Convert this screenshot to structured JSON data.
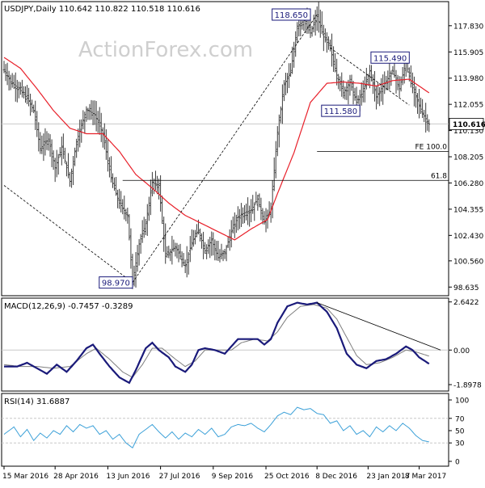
{
  "watermark": "ActionForex.com",
  "colors": {
    "price_bar": "#3b3b3b",
    "ma": "#e8202a",
    "macd": "#1a1a7a",
    "signal": "#7f7f7f",
    "rsi": "#3ba0d8",
    "level_line": "#000000",
    "ref_line": "#c8c8c8",
    "watermark": "#cfcfcf"
  },
  "chart_data": [
    {
      "type": "bar",
      "title": "USDJPY,Daily  110.642 110.822 110.518 110.616",
      "ylim": [
        98.0,
        119.6
      ],
      "y_ticks": [
        "117.830",
        "115.905",
        "113.980",
        "112.055",
        "110.130",
        "108.205",
        "106.280",
        "104.355",
        "102.430",
        "100.560",
        "98.635"
      ],
      "y_tick_values": [
        117.83,
        115.905,
        113.98,
        112.055,
        110.13,
        108.205,
        106.28,
        104.355,
        102.43,
        100.56,
        98.635
      ],
      "current_price": "110.616",
      "current_price_value": 110.616,
      "x_labels": [
        "15 Mar 2016",
        "28 Apr 2016",
        "13 Jun 2016",
        "27 Jul 2016",
        "9 Sep 2016",
        "25 Oct 2016",
        "8 Dec 2016",
        "23 Jan 2017",
        "8 Mar 2017"
      ],
      "bars": 265,
      "ohlc_anchors": [
        [
          0,
          114.6
        ],
        [
          4,
          113.7
        ],
        [
          9,
          113.2
        ],
        [
          14,
          112.5
        ],
        [
          18,
          111.6
        ],
        [
          22,
          108.8
        ],
        [
          27,
          109.5
        ],
        [
          31,
          107.4
        ],
        [
          35,
          108.9
        ],
        [
          40,
          106.4
        ],
        [
          44,
          109.3
        ],
        [
          50,
          111.7
        ],
        [
          55,
          111.3
        ],
        [
          60,
          109.9
        ],
        [
          65,
          106.6
        ],
        [
          70,
          104.8
        ],
        [
          75,
          103.9
        ],
        [
          78,
          99.0
        ],
        [
          82,
          101.8
        ],
        [
          86,
          103.3
        ],
        [
          90,
          106.3
        ],
        [
          94,
          106.1
        ],
        [
          98,
          100.9
        ],
        [
          104,
          101.6
        ],
        [
          110,
          100.2
        ],
        [
          114,
          101.9
        ],
        [
          118,
          102.8
        ],
        [
          122,
          101.3
        ],
        [
          126,
          102.1
        ],
        [
          130,
          100.8
        ],
        [
          134,
          101.2
        ],
        [
          138,
          102.7
        ],
        [
          142,
          103.8
        ],
        [
          146,
          104.1
        ],
        [
          150,
          104.3
        ],
        [
          154,
          105.1
        ],
        [
          158,
          103.4
        ],
        [
          162,
          104.4
        ],
        [
          166,
          110.0
        ],
        [
          170,
          113.5
        ],
        [
          174,
          114.4
        ],
        [
          178,
          117.8
        ],
        [
          182,
          118.2
        ],
        [
          186,
          117.3
        ],
        [
          190,
          118.5
        ],
        [
          194,
          117.0
        ],
        [
          198,
          116.2
        ],
        [
          202,
          114.2
        ],
        [
          206,
          112.9
        ],
        [
          210,
          113.7
        ],
        [
          214,
          112.2
        ],
        [
          218,
          113.0
        ],
        [
          222,
          114.5
        ],
        [
          226,
          112.6
        ],
        [
          230,
          113.4
        ],
        [
          236,
          114.5
        ],
        [
          240,
          113.2
        ],
        [
          244,
          115.2
        ],
        [
          247,
          113.6
        ],
        [
          250,
          112.6
        ],
        [
          254,
          111.4
        ],
        [
          258,
          110.6
        ]
      ],
      "sma_anchors": [
        [
          0,
          115.5
        ],
        [
          10,
          114.7
        ],
        [
          20,
          113.2
        ],
        [
          30,
          111.6
        ],
        [
          40,
          110.3
        ],
        [
          50,
          109.9
        ],
        [
          60,
          109.9
        ],
        [
          70,
          108.6
        ],
        [
          80,
          106.9
        ],
        [
          90,
          105.9
        ],
        [
          100,
          104.8
        ],
        [
          110,
          103.9
        ],
        [
          120,
          103.3
        ],
        [
          130,
          102.7
        ],
        [
          140,
          102.1
        ],
        [
          150,
          102.9
        ],
        [
          160,
          103.6
        ],
        [
          166,
          105.5
        ],
        [
          176,
          108.5
        ],
        [
          186,
          112.2
        ],
        [
          196,
          113.6
        ],
        [
          206,
          113.7
        ],
        [
          216,
          113.6
        ],
        [
          226,
          113.4
        ],
        [
          236,
          113.8
        ],
        [
          246,
          113.9
        ],
        [
          252,
          113.4
        ],
        [
          258,
          112.9
        ]
      ],
      "annotations": [
        {
          "label": "118.650",
          "bar": 186,
          "value": 118.65
        },
        {
          "label": "115.490",
          "bar": 246,
          "value": 115.49
        },
        {
          "label": "111.580",
          "bar": 216,
          "value": 111.58
        },
        {
          "label": "98.970",
          "bar": 78,
          "value": 98.97
        }
      ],
      "levels": [
        {
          "label": "FE 100.0",
          "value": 108.6,
          "from_bar": 190
        },
        {
          "label": "61.8",
          "value": 106.47,
          "from_bar": 72
        }
      ],
      "trendlines": [
        {
          "from": [
            0,
            106.1
          ],
          "to": [
            78,
            98.97
          ]
        },
        {
          "from": [
            78,
            98.97
          ],
          "to": [
            190,
            118.65
          ]
        },
        {
          "from": [
            198,
            116.2
          ],
          "to": [
            246,
            112.0
          ]
        }
      ]
    },
    {
      "type": "line",
      "title": "MACD(12,26,9) -0.7457 -0.3289",
      "ylim": [
        -2.25,
        2.85
      ],
      "y_ticks": [
        "2.6422",
        "0.00",
        "-1.8978"
      ],
      "y_tick_values": [
        2.6422,
        0.0,
        -1.8978
      ],
      "zero_line": 0.0,
      "macd_anchors": [
        [
          0,
          -0.9
        ],
        [
          8,
          -0.9
        ],
        [
          14,
          -0.7
        ],
        [
          20,
          -1.0
        ],
        [
          26,
          -1.3
        ],
        [
          32,
          -0.8
        ],
        [
          38,
          -1.2
        ],
        [
          44,
          -0.6
        ],
        [
          50,
          0.1
        ],
        [
          54,
          0.3
        ],
        [
          58,
          -0.2
        ],
        [
          64,
          -0.9
        ],
        [
          70,
          -1.5
        ],
        [
          76,
          -1.8
        ],
        [
          80,
          -1.1
        ],
        [
          86,
          0.1
        ],
        [
          90,
          0.4
        ],
        [
          94,
          0.0
        ],
        [
          100,
          -0.4
        ],
        [
          104,
          -0.9
        ],
        [
          110,
          -1.2
        ],
        [
          114,
          -0.8
        ],
        [
          118,
          0.0
        ],
        [
          122,
          0.1
        ],
        [
          128,
          0.0
        ],
        [
          134,
          -0.2
        ],
        [
          138,
          0.2
        ],
        [
          142,
          0.6
        ],
        [
          148,
          0.6
        ],
        [
          154,
          0.6
        ],
        [
          158,
          0.3
        ],
        [
          162,
          0.6
        ],
        [
          166,
          1.5
        ],
        [
          172,
          2.4
        ],
        [
          178,
          2.6
        ],
        [
          184,
          2.5
        ],
        [
          190,
          2.6
        ],
        [
          196,
          2.1
        ],
        [
          202,
          1.2
        ],
        [
          208,
          -0.2
        ],
        [
          214,
          -0.8
        ],
        [
          220,
          -1.0
        ],
        [
          226,
          -0.6
        ],
        [
          232,
          -0.5
        ],
        [
          238,
          -0.2
        ],
        [
          244,
          0.2
        ],
        [
          248,
          0.0
        ],
        [
          252,
          -0.4
        ],
        [
          258,
          -0.75
        ]
      ],
      "signal_anchors": [
        [
          0,
          -0.8
        ],
        [
          10,
          -0.9
        ],
        [
          20,
          -0.9
        ],
        [
          30,
          -1.0
        ],
        [
          40,
          -0.9
        ],
        [
          50,
          -0.2
        ],
        [
          56,
          0.1
        ],
        [
          64,
          -0.5
        ],
        [
          72,
          -1.2
        ],
        [
          78,
          -1.5
        ],
        [
          84,
          -0.8
        ],
        [
          90,
          0.1
        ],
        [
          96,
          0.1
        ],
        [
          104,
          -0.5
        ],
        [
          110,
          -0.9
        ],
        [
          116,
          -0.6
        ],
        [
          122,
          0.0
        ],
        [
          130,
          0.0
        ],
        [
          138,
          0.0
        ],
        [
          144,
          0.4
        ],
        [
          152,
          0.6
        ],
        [
          160,
          0.5
        ],
        [
          166,
          1.0
        ],
        [
          172,
          1.8
        ],
        [
          180,
          2.4
        ],
        [
          188,
          2.5
        ],
        [
          196,
          2.3
        ],
        [
          202,
          1.7
        ],
        [
          208,
          0.7
        ],
        [
          214,
          -0.3
        ],
        [
          220,
          -0.8
        ],
        [
          228,
          -0.7
        ],
        [
          236,
          -0.4
        ],
        [
          244,
          0.0
        ],
        [
          250,
          -0.1
        ],
        [
          258,
          -0.33
        ]
      ],
      "trendline": {
        "from": [
          190,
          2.6
        ],
        "to": [
          265,
          0.0
        ]
      }
    },
    {
      "type": "line",
      "title": "RSI(14) 31.6887",
      "ylim": [
        0,
        100
      ],
      "y_ticks": [
        "100",
        "70",
        "50",
        "30",
        "0"
      ],
      "y_tick_values": [
        100,
        70,
        50,
        30,
        0
      ],
      "ref_levels": [
        70,
        30
      ],
      "rsi_anchors": [
        [
          0,
          44
        ],
        [
          6,
          56
        ],
        [
          10,
          40
        ],
        [
          14,
          52
        ],
        [
          18,
          34
        ],
        [
          22,
          46
        ],
        [
          26,
          38
        ],
        [
          30,
          50
        ],
        [
          34,
          44
        ],
        [
          38,
          58
        ],
        [
          42,
          48
        ],
        [
          46,
          60
        ],
        [
          50,
          54
        ],
        [
          54,
          58
        ],
        [
          58,
          44
        ],
        [
          62,
          50
        ],
        [
          66,
          36
        ],
        [
          70,
          44
        ],
        [
          74,
          30
        ],
        [
          78,
          22
        ],
        [
          82,
          44
        ],
        [
          86,
          52
        ],
        [
          90,
          60
        ],
        [
          94,
          48
        ],
        [
          98,
          38
        ],
        [
          102,
          48
        ],
        [
          106,
          36
        ],
        [
          110,
          46
        ],
        [
          114,
          40
        ],
        [
          118,
          52
        ],
        [
          122,
          44
        ],
        [
          126,
          54
        ],
        [
          130,
          40
        ],
        [
          134,
          44
        ],
        [
          138,
          56
        ],
        [
          142,
          60
        ],
        [
          146,
          58
        ],
        [
          150,
          62
        ],
        [
          154,
          54
        ],
        [
          158,
          48
        ],
        [
          162,
          60
        ],
        [
          166,
          74
        ],
        [
          170,
          80
        ],
        [
          174,
          76
        ],
        [
          178,
          88
        ],
        [
          182,
          84
        ],
        [
          186,
          86
        ],
        [
          190,
          78
        ],
        [
          194,
          76
        ],
        [
          198,
          62
        ],
        [
          202,
          66
        ],
        [
          206,
          50
        ],
        [
          210,
          58
        ],
        [
          214,
          44
        ],
        [
          218,
          50
        ],
        [
          222,
          40
        ],
        [
          226,
          56
        ],
        [
          230,
          48
        ],
        [
          234,
          58
        ],
        [
          238,
          50
        ],
        [
          242,
          62
        ],
        [
          246,
          54
        ],
        [
          250,
          42
        ],
        [
          254,
          34
        ],
        [
          258,
          31.7
        ]
      ]
    }
  ]
}
